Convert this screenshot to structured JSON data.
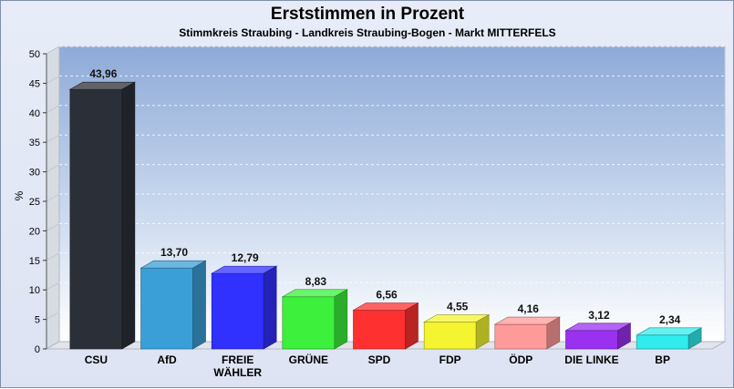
{
  "chart_data": {
    "type": "bar",
    "title": "Erststimmen in Prozent",
    "subtitle": "Stimmkreis Straubing - Landkreis Straubing-Bogen - Markt MITTERFELS",
    "ylabel": "%",
    "xlabel": "",
    "ylim": [
      0,
      50
    ],
    "yticks": [
      "0",
      "5",
      "10",
      "15",
      "20",
      "25",
      "30",
      "35",
      "40",
      "45",
      "50"
    ],
    "grid": true,
    "categories": [
      "CSU",
      "AfD",
      "FREIE WÄHLER",
      "GRÜNE",
      "SPD",
      "FDP",
      "ÖDP",
      "DIE LINKE",
      "BP"
    ],
    "category_lines": [
      [
        "CSU"
      ],
      [
        "AfD"
      ],
      [
        "FREIE",
        "WÄHLER"
      ],
      [
        "GRÜNE"
      ],
      [
        "SPD"
      ],
      [
        "FDP"
      ],
      [
        "ÖDP"
      ],
      [
        "DIE LINKE"
      ],
      [
        "BP"
      ]
    ],
    "values": [
      43.96,
      13.7,
      12.79,
      8.83,
      6.56,
      4.55,
      4.16,
      3.12,
      2.34
    ],
    "value_labels": [
      "43,96",
      "13,70",
      "12,79",
      "8,83",
      "6,56",
      "4,55",
      "4,16",
      "3,12",
      "2,34"
    ],
    "colors": [
      "#2b2f38",
      "#3a9fd6",
      "#3030ff",
      "#3cf03c",
      "#ff3030",
      "#f4f430",
      "#ff9a9a",
      "#9a30f0",
      "#30ecec"
    ]
  }
}
